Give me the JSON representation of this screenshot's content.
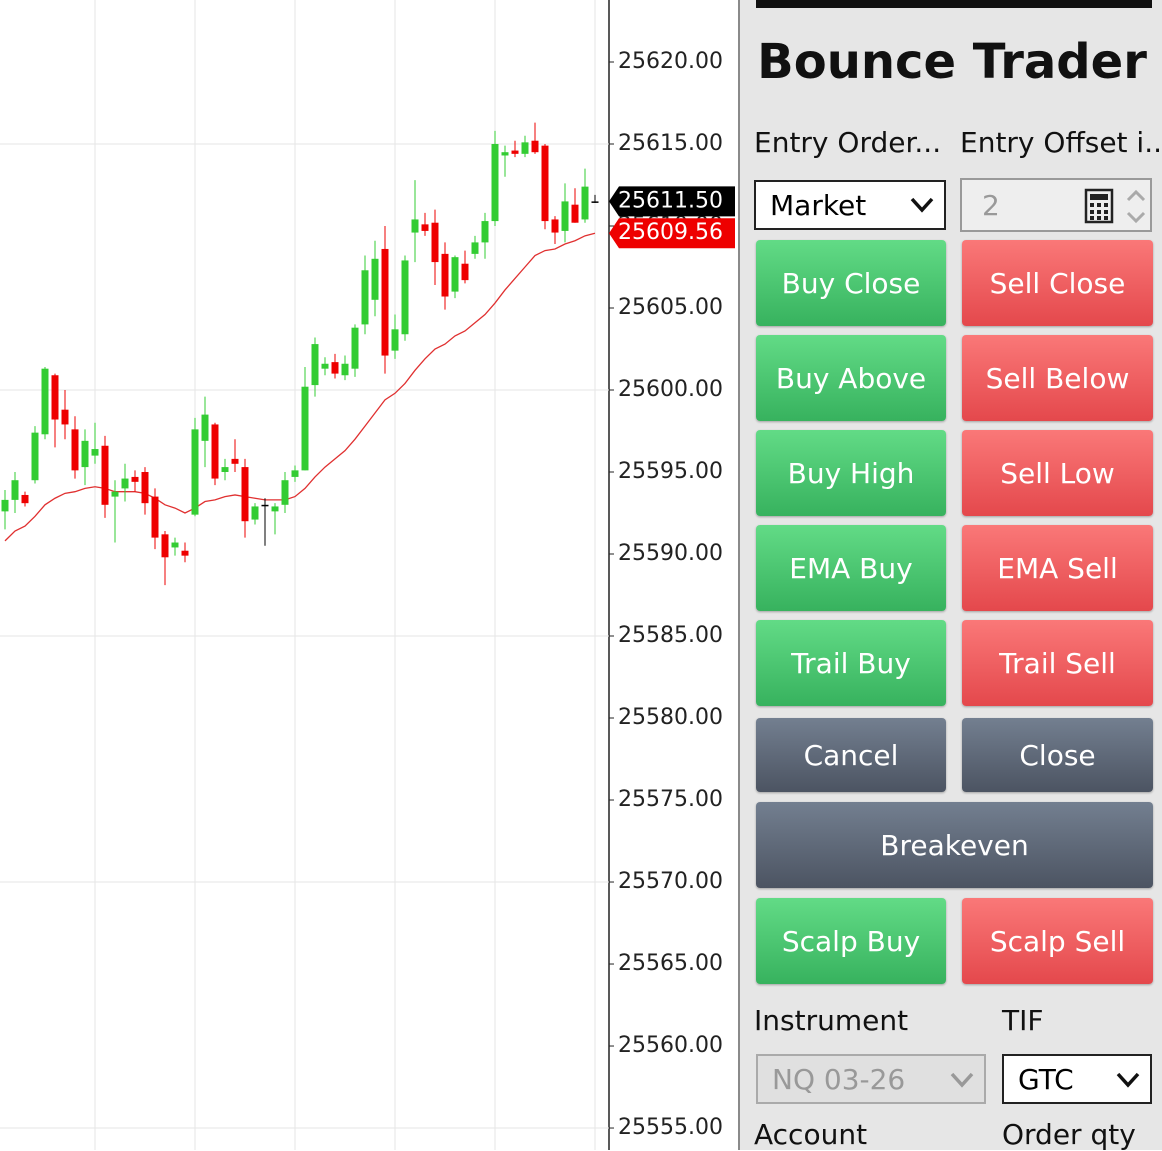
{
  "chart_data": {
    "type": "candlestick",
    "open": [
      25592.6,
      25593.3,
      25593.6,
      25594.5,
      25597.3,
      25600.9,
      25598.8,
      25597.6,
      25595.3,
      25596.0,
      25596.6,
      25593.5,
      25594.0,
      25594.7,
      25595.0,
      25593.5,
      25591.2,
      25590.4,
      25590.2,
      25592.4,
      25596.9,
      25597.9,
      25595.0,
      25595.8,
      25595.3,
      25592.1,
      25593.0,
      25592.6,
      25593.0,
      25594.7,
      25595.1,
      25600.3,
      25601.3,
      25601.7,
      25600.9,
      25601.3,
      25604.0,
      25605.5,
      25608.6,
      25602.4,
      25603.4,
      25609.6,
      25610.1,
      25610.2,
      25608.3,
      25606.0,
      25607.7,
      25608.3,
      25609.0,
      25610.3,
      25614.3,
      25614.6,
      25614.4,
      25615.2,
      25614.9,
      25610.4,
      25609.7,
      25611.3,
      25610.4,
      25611.5
    ],
    "high": [
      25593.9,
      25595.0,
      25593.8,
      25597.8,
      25601.4,
      25601.0,
      25600.0,
      25598.4,
      25597.6,
      25598.0,
      25597.2,
      25594.5,
      25595.5,
      25595.1,
      25595.3,
      25594.0,
      25591.4,
      25591.0,
      25590.7,
      25598.3,
      25599.6,
      25598.0,
      25595.8,
      25597.0,
      25595.8,
      25593.1,
      25593.4,
      25593.1,
      25595.0,
      25595.4,
      25601.4,
      25603.2,
      25602.0,
      25602.2,
      25602.1,
      25604.0,
      25608.2,
      25609.1,
      25610.0,
      25604.6,
      25608.2,
      25612.8,
      25610.8,
      25611.0,
      25609.0,
      25608.2,
      25608.5,
      25609.4,
      25610.8,
      25615.8,
      25614.9,
      25615.2,
      25615.5,
      25616.3,
      25615.0,
      25610.6,
      25612.6,
      25612.3,
      25613.5,
      25611.9
    ],
    "low": [
      25591.5,
      25592.5,
      25592.9,
      25594.3,
      25597.0,
      25596.5,
      25597.0,
      25594.6,
      25594.2,
      25595.5,
      25592.2,
      25590.7,
      25593.2,
      25593.8,
      25592.4,
      25590.3,
      25588.1,
      25589.9,
      25589.5,
      25592.3,
      25595.3,
      25594.2,
      25594.5,
      25595.0,
      25591.0,
      25591.8,
      25590.5,
      25591.2,
      25592.5,
      25594.4,
      25595.1,
      25599.6,
      25600.9,
      25600.7,
      25600.6,
      25600.8,
      25603.4,
      25604.5,
      25601.0,
      25601.9,
      25603.0,
      25607.8,
      25609.4,
      25606.4,
      25604.9,
      25605.6,
      25606.5,
      25608.0,
      25608.0,
      25610.0,
      25613.0,
      25614.2,
      25614.2,
      25614.4,
      25609.8,
      25608.9,
      25609.0,
      25610.2,
      25610.2,
      25611.4
    ],
    "close": [
      25593.3,
      25594.5,
      25593.1,
      25597.4,
      25601.3,
      25598.2,
      25597.9,
      25595.1,
      25596.9,
      25596.4,
      25593.0,
      25593.8,
      25594.6,
      25594.4,
      25593.1,
      25591.0,
      25589.8,
      25590.7,
      25589.9,
      25597.6,
      25598.5,
      25594.6,
      25595.3,
      25595.5,
      25592.0,
      25592.9,
      25593.0,
      25592.9,
      25594.5,
      25595.1,
      25600.2,
      25602.8,
      25601.6,
      25601.0,
      25601.6,
      25603.8,
      25607.3,
      25608.0,
      25602.1,
      25603.7,
      25607.9,
      25610.4,
      25609.7,
      25607.8,
      25605.7,
      25608.1,
      25606.7,
      25609.0,
      25610.3,
      25615.0,
      25614.5,
      25614.4,
      25615.1,
      25614.5,
      25610.3,
      25609.6,
      25611.5,
      25610.2,
      25612.4,
      25611.5
    ],
    "up_color": "#33cc33",
    "down_color": "#ee0000",
    "flat_color": "#000000",
    "ema": {
      "color": "#e03030",
      "values": [
        25590.8,
        25591.4,
        25591.7,
        25592.3,
        25593.0,
        25593.4,
        25593.7,
        25593.8,
        25594.0,
        25594.1,
        25594.0,
        25593.8,
        25593.8,
        25593.8,
        25593.7,
        25593.4,
        25593.0,
        25592.8,
        25592.5,
        25592.8,
        25593.2,
        25593.3,
        25593.5,
        25593.6,
        25593.5,
        25593.4,
        25593.3,
        25593.3,
        25593.3,
        25593.5,
        25594.0,
        25594.7,
        25595.3,
        25595.8,
        25596.3,
        25597.0,
        25597.8,
        25598.6,
        25599.4,
        25599.8,
        25600.4,
        25601.2,
        25601.9,
        25602.5,
        25602.8,
        25603.3,
        25603.6,
        25604.1,
        25604.6,
        25605.3,
        25606.1,
        25606.8,
        25607.5,
        25608.2,
        25608.5,
        25608.6,
        25608.9,
        25609.1,
        25609.4,
        25609.56
      ]
    },
    "ylim": [
      25553.66,
      25623.78
    ],
    "yticks": [
      {
        "value": 25620,
        "label": "25620.00"
      },
      {
        "value": 25615,
        "label": "25615.00"
      },
      {
        "value": 25610,
        "label": "25610.00"
      },
      {
        "value": 25605,
        "label": "25605.00"
      },
      {
        "value": 25600,
        "label": "25600.00"
      },
      {
        "value": 25595,
        "label": "25595.00"
      },
      {
        "value": 25590,
        "label": "25590.00"
      },
      {
        "value": 25585,
        "label": "25585.00"
      },
      {
        "value": 25580,
        "label": "25580.00"
      },
      {
        "value": 25575,
        "label": "25575.00"
      },
      {
        "value": 25570,
        "label": "25570.00"
      },
      {
        "value": 25565,
        "label": "25565.00"
      },
      {
        "value": 25560,
        "label": "25560.00"
      },
      {
        "value": 25555,
        "label": "25555.00"
      }
    ],
    "grid": true,
    "last_price": {
      "value": 25611.5,
      "label": "25611.50"
    },
    "ema_last": {
      "value": 25609.56,
      "label": "25609.56"
    }
  },
  "panel": {
    "title": "Bounce Trader",
    "entry_order_label": "Entry Order...",
    "entry_offset_label": "Entry Offset i...",
    "entry_order_value": "Market",
    "entry_offset_value": "2",
    "buttons": [
      {
        "label": "Buy Close",
        "kind": "buy"
      },
      {
        "label": "Sell Close",
        "kind": "sell"
      },
      {
        "label": "Buy Above",
        "kind": "buy"
      },
      {
        "label": "Sell Below",
        "kind": "sell"
      },
      {
        "label": "Buy High",
        "kind": "buy"
      },
      {
        "label": "Sell Low",
        "kind": "sell"
      },
      {
        "label": "EMA Buy",
        "kind": "buy"
      },
      {
        "label": "EMA Sell",
        "kind": "sell"
      },
      {
        "label": "Trail Buy",
        "kind": "buy"
      },
      {
        "label": "Trail Sell",
        "kind": "sell"
      },
      {
        "label": "Cancel",
        "kind": "neutral"
      },
      {
        "label": "Close",
        "kind": "neutral"
      },
      {
        "label": "Breakeven",
        "kind": "neutral"
      },
      {
        "label": "Scalp Buy",
        "kind": "buy"
      },
      {
        "label": "Scalp Sell",
        "kind": "sell"
      }
    ],
    "instrument_label": "Instrument",
    "instrument_value": "NQ 03-26",
    "tif_label": "TIF",
    "tif_value": "GTC",
    "account_label": "Account",
    "order_qty_label": "Order qty"
  }
}
